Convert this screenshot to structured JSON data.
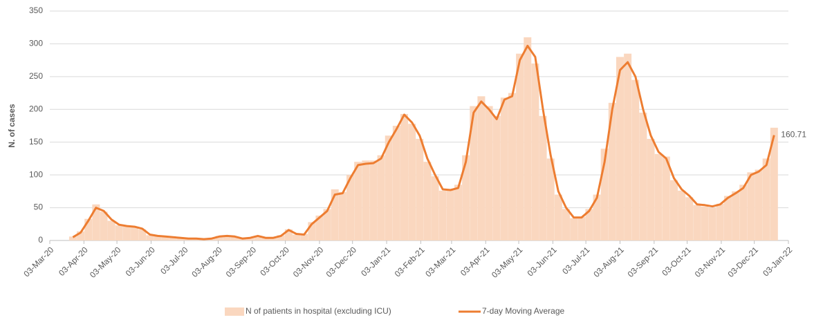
{
  "chart_data": {
    "type": "bar-line",
    "y_label": "N. of cases",
    "x": [
      "2020-03-24",
      "2020-03-31",
      "2020-04-07",
      "2020-04-14",
      "2020-04-21",
      "2020-04-28",
      "2020-05-05",
      "2020-05-12",
      "2020-05-19",
      "2020-05-26",
      "2020-06-02",
      "2020-06-09",
      "2020-06-16",
      "2020-06-23",
      "2020-06-30",
      "2020-07-07",
      "2020-07-14",
      "2020-07-21",
      "2020-07-28",
      "2020-08-04",
      "2020-08-11",
      "2020-08-18",
      "2020-08-25",
      "2020-09-01",
      "2020-09-08",
      "2020-09-15",
      "2020-09-22",
      "2020-09-29",
      "2020-10-06",
      "2020-10-13",
      "2020-10-20",
      "2020-10-27",
      "2020-11-03",
      "2020-11-10",
      "2020-11-17",
      "2020-11-24",
      "2020-12-01",
      "2020-12-08",
      "2020-12-15",
      "2020-12-22",
      "2020-12-29",
      "2021-01-05",
      "2021-01-12",
      "2021-01-19",
      "2021-01-26",
      "2021-02-02",
      "2021-02-09",
      "2021-02-16",
      "2021-02-23",
      "2021-03-02",
      "2021-03-09",
      "2021-03-16",
      "2021-03-23",
      "2021-03-30",
      "2021-04-06",
      "2021-04-13",
      "2021-04-20",
      "2021-04-27",
      "2021-05-04",
      "2021-05-11",
      "2021-05-18",
      "2021-05-25",
      "2021-06-01",
      "2021-06-08",
      "2021-06-15",
      "2021-06-22",
      "2021-06-29",
      "2021-07-06",
      "2021-07-13",
      "2021-07-20",
      "2021-07-27",
      "2021-08-03",
      "2021-08-10",
      "2021-08-17",
      "2021-08-24",
      "2021-08-31",
      "2021-09-07",
      "2021-09-14",
      "2021-09-21",
      "2021-09-28",
      "2021-10-05",
      "2021-10-12",
      "2021-10-19",
      "2021-10-26",
      "2021-11-02",
      "2021-11-09",
      "2021-11-16",
      "2021-11-23",
      "2021-11-30",
      "2021-12-07",
      "2021-12-14",
      "2021-12-21"
    ],
    "series": [
      {
        "name": "N of patients in hospital (excluding ICU)",
        "color": "#fad7bf",
        "values": [
          6,
          14,
          33,
          55,
          44,
          30,
          23,
          22,
          20,
          17,
          8,
          7,
          6,
          5,
          4,
          3,
          3,
          2,
          3,
          7,
          7,
          5,
          3,
          4,
          7,
          4,
          4,
          8,
          17,
          9,
          10,
          28,
          38,
          48,
          78,
          74,
          100,
          120,
          122,
          122,
          130,
          160,
          175,
          193,
          178,
          155,
          120,
          98,
          76,
          78,
          85,
          130,
          205,
          220,
          205,
          190,
          218,
          225,
          285,
          310,
          270,
          190,
          125,
          70,
          48,
          34,
          36,
          48,
          70,
          140,
          210,
          280,
          285,
          245,
          195,
          155,
          132,
          128,
          92,
          76,
          66,
          54,
          52,
          50,
          56,
          68,
          75,
          85,
          104,
          108,
          125,
          172
        ]
      },
      {
        "name": "7-day Moving Average",
        "color": "#ed7d31",
        "values": [
          5,
          12,
          30,
          50,
          45,
          32,
          24,
          22,
          21,
          18,
          9,
          7,
          6,
          5,
          4,
          3,
          3,
          2,
          3,
          6,
          7,
          6,
          3,
          4,
          7,
          4,
          4,
          7,
          16,
          10,
          9,
          25,
          35,
          45,
          70,
          72,
          95,
          115,
          117,
          118,
          125,
          150,
          170,
          192,
          180,
          160,
          125,
          100,
          78,
          77,
          80,
          120,
          195,
          212,
          200,
          185,
          215,
          220,
          275,
          297,
          280,
          200,
          130,
          75,
          50,
          35,
          35,
          45,
          65,
          120,
          200,
          260,
          272,
          250,
          200,
          160,
          135,
          125,
          95,
          78,
          68,
          55,
          54,
          52,
          55,
          65,
          72,
          80,
          100,
          105,
          115,
          160.71
        ]
      }
    ],
    "end_label": 160.71,
    "xlim": [
      "2020-03-03",
      "2022-01-03"
    ],
    "xticks": [
      {
        "value": "2020-03-03",
        "label": "03-Mar-20"
      },
      {
        "value": "2020-04-03",
        "label": "03-Apr-20"
      },
      {
        "value": "2020-05-03",
        "label": "03-May-20"
      },
      {
        "value": "2020-06-03",
        "label": "03-Jun-20"
      },
      {
        "value": "2020-07-03",
        "label": "03-Jul-20"
      },
      {
        "value": "2020-08-03",
        "label": "03-Aug-20"
      },
      {
        "value": "2020-09-03",
        "label": "03-Sep-20"
      },
      {
        "value": "2020-10-03",
        "label": "03-Oct-20"
      },
      {
        "value": "2020-11-03",
        "label": "03-Nov-20"
      },
      {
        "value": "2020-12-03",
        "label": "03-Dec-20"
      },
      {
        "value": "2021-01-03",
        "label": "03-Jan-21"
      },
      {
        "value": "2021-02-03",
        "label": "03-Feb-21"
      },
      {
        "value": "2021-03-03",
        "label": "03-Mar-21"
      },
      {
        "value": "2021-04-03",
        "label": "03-Apr-21"
      },
      {
        "value": "2021-05-03",
        "label": "03-May-21"
      },
      {
        "value": "2021-06-03",
        "label": "03-Jun-21"
      },
      {
        "value": "2021-07-03",
        "label": "03-Jul-21"
      },
      {
        "value": "2021-08-03",
        "label": "03-Aug-21"
      },
      {
        "value": "2021-09-03",
        "label": "03-Sep-21"
      },
      {
        "value": "2021-10-03",
        "label": "03-Oct-21"
      },
      {
        "value": "2021-11-03",
        "label": "03-Nov-21"
      },
      {
        "value": "2021-12-03",
        "label": "03-Dec-21"
      },
      {
        "value": "2022-01-03",
        "label": "03-Jan-22"
      }
    ],
    "ylim": [
      0,
      350
    ],
    "yticks": [
      0,
      50,
      100,
      150,
      200,
      250,
      300,
      350
    ],
    "grid": true
  }
}
